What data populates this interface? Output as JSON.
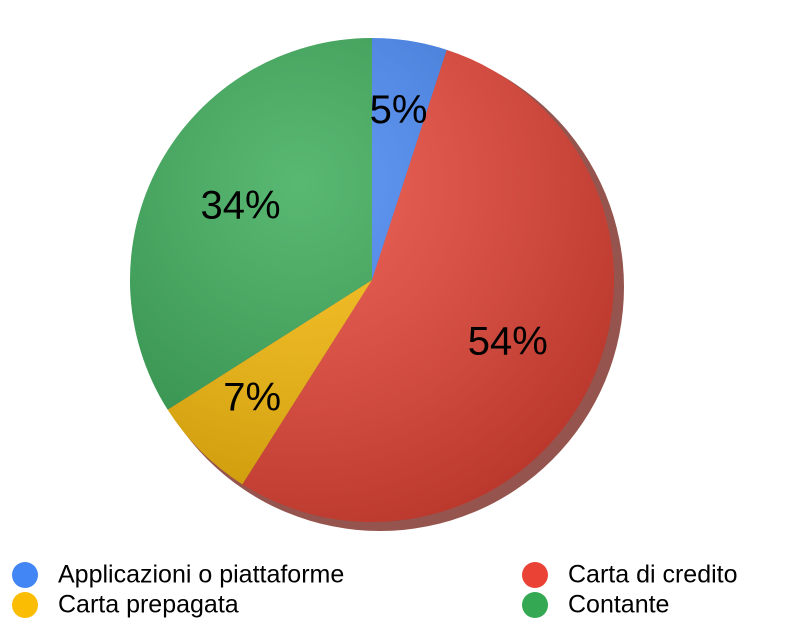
{
  "chart_data": {
    "type": "pie",
    "categories": [
      "Applicazioni o piattaforme",
      "Carta di credito",
      "Carta prepagata",
      "Contante"
    ],
    "values": [
      5,
      54,
      7,
      34
    ],
    "value_labels": [
      "5%",
      "54%",
      "7%",
      "34%"
    ],
    "colors": [
      "#4285f4",
      "#ea4335",
      "#fbbc04",
      "#34a853"
    ]
  }
}
